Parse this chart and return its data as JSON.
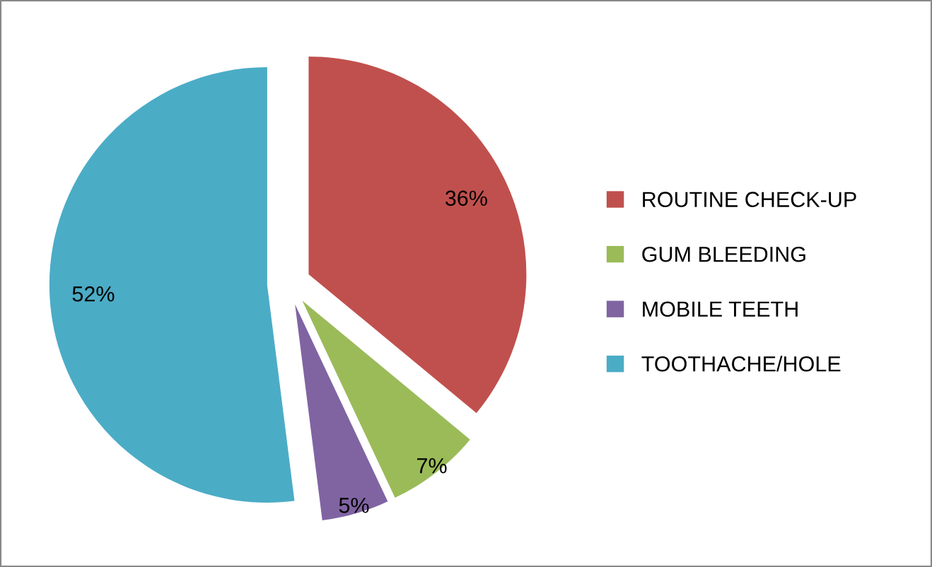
{
  "chart_data": {
    "type": "pie",
    "categories": [
      "ROUTINE CHECK-UP",
      "GUM BLEEDING",
      "MOBILE TEETH",
      "TOOTHACHE/HOLE"
    ],
    "values": [
      36,
      7,
      5,
      52
    ],
    "colors": [
      "#c0504d",
      "#9bbb59",
      "#8064a2",
      "#4bacc6"
    ],
    "value_labels": [
      "36%",
      "7%",
      "5%",
      "52%"
    ],
    "legend": "right"
  }
}
